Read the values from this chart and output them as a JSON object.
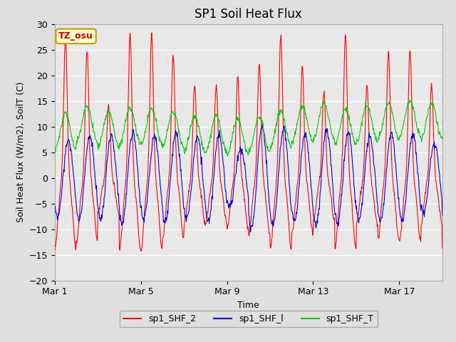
{
  "title": "SP1 Soil Heat Flux",
  "xlabel": "Time",
  "ylabel": "Soil Heat Flux (W/m2), SoilT (C)",
  "ylim": [
    -20,
    30
  ],
  "xlim": [
    0,
    18
  ],
  "xtick_labels": [
    "Mar 1",
    "Mar 5",
    "Mar 9",
    "Mar 13",
    "Mar 17"
  ],
  "xtick_positions": [
    0,
    4,
    8,
    12,
    16
  ],
  "ytick_values": [
    -20,
    -15,
    -10,
    -5,
    0,
    5,
    10,
    15,
    20,
    25,
    30
  ],
  "fig_facecolor": "#e0e0e0",
  "plot_facecolor": "#e8e8e8",
  "grid_color": "#ffffff",
  "legend_labels": [
    "sp1_SHF_2",
    "sp1_SHF_l",
    "sp1_SHF_T"
  ],
  "legend_colors": [
    "#ff0000",
    "#0000dd",
    "#00cc00"
  ],
  "tz_label": "TZ_osu",
  "tz_bg": "#ffffcc",
  "tz_border": "#cc9900",
  "tz_text_color": "#cc0000",
  "title_fontsize": 12,
  "label_fontsize": 9,
  "tick_fontsize": 9
}
